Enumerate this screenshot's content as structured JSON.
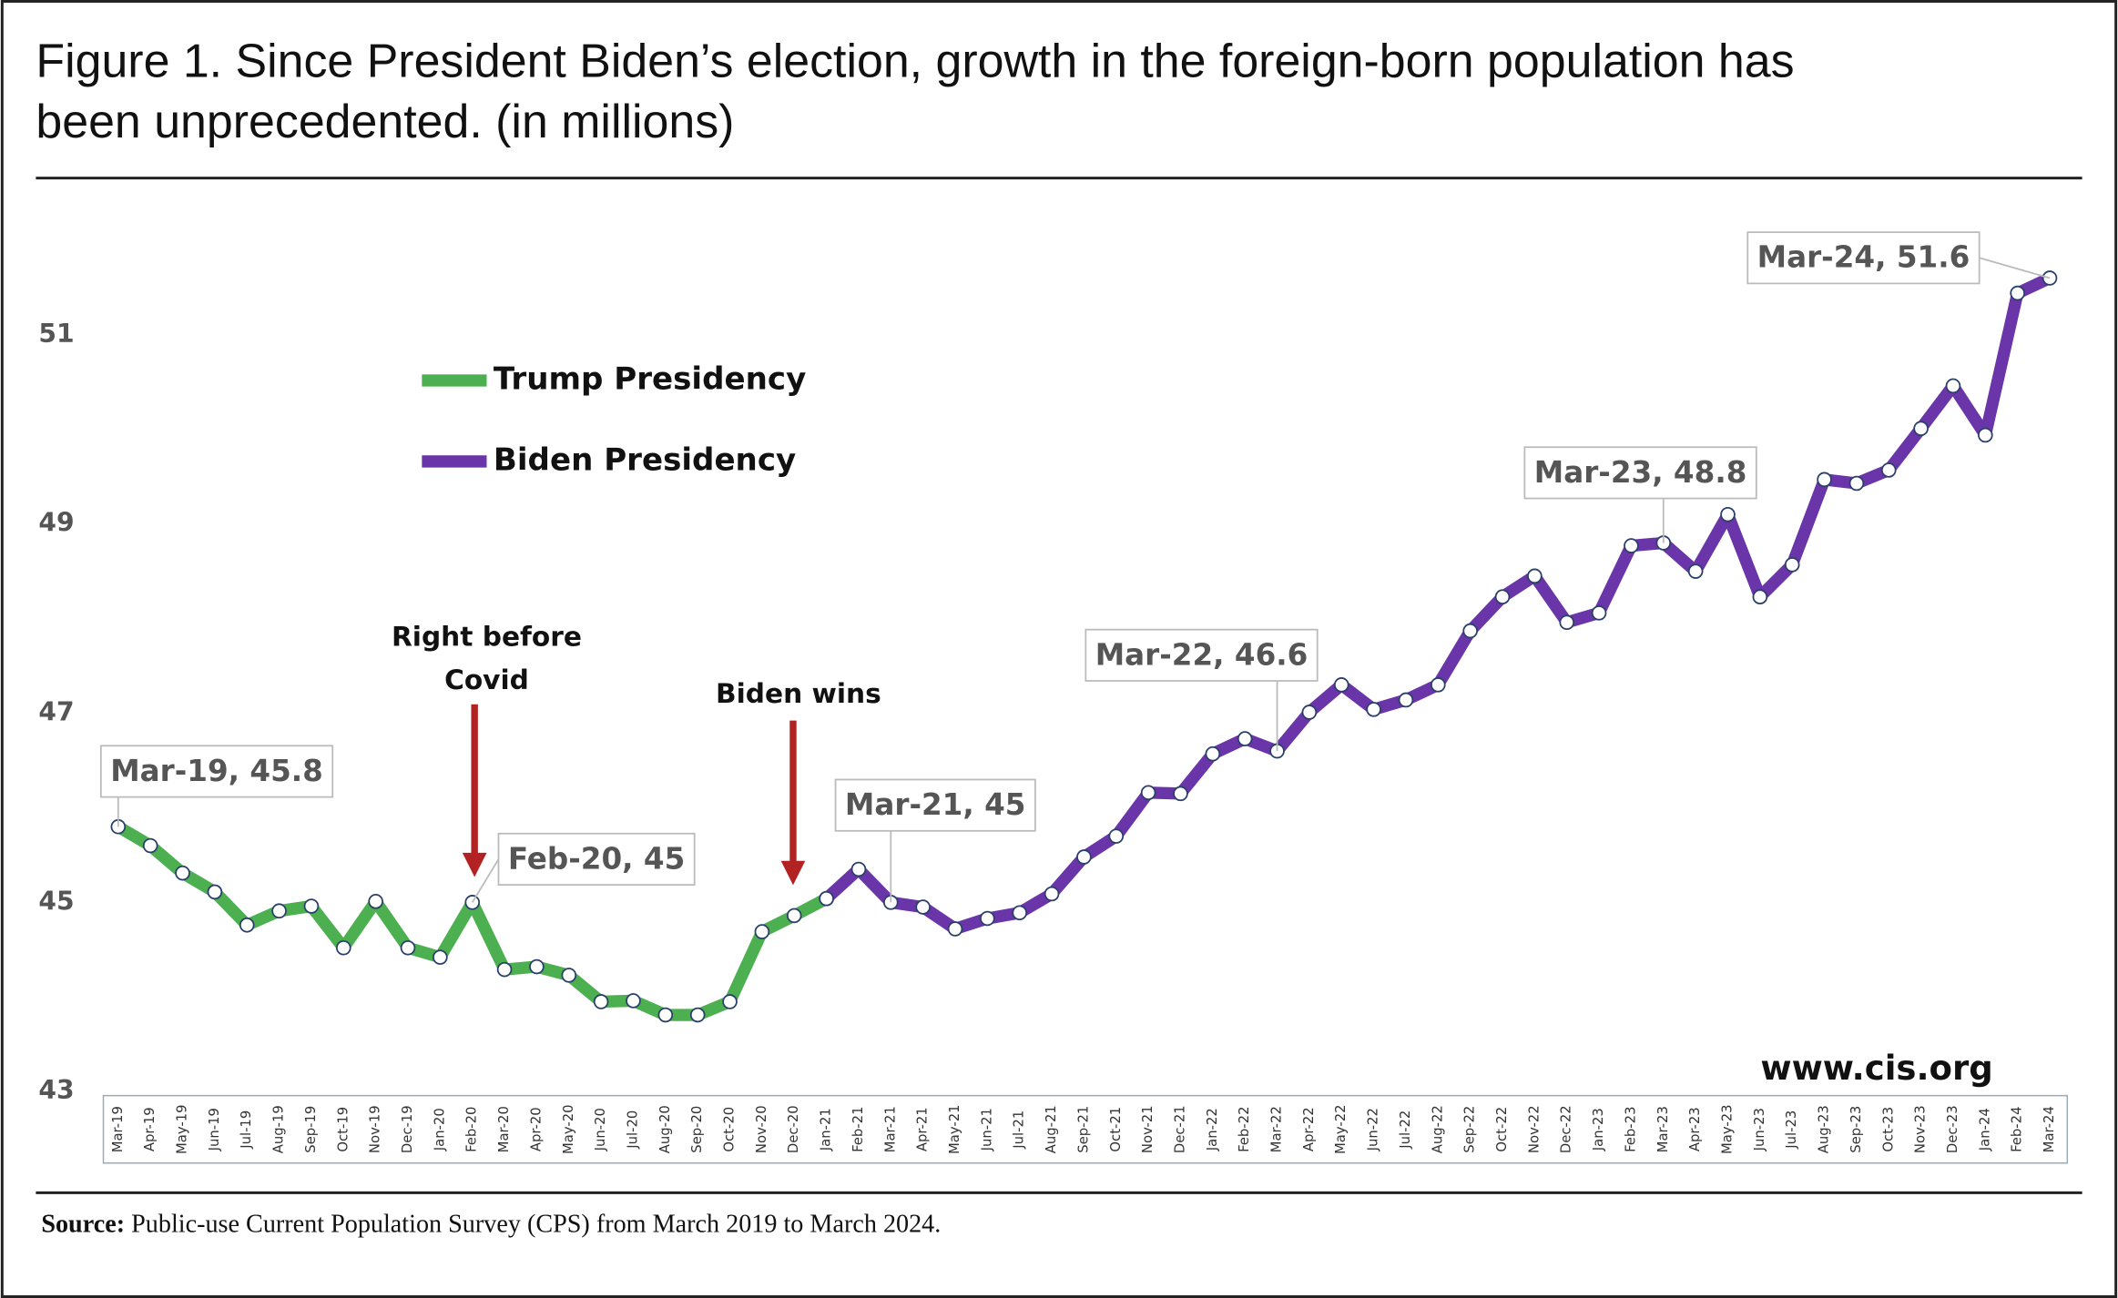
{
  "chart_data": {
    "type": "line",
    "title": [
      "Figure 1. Since President Biden’s election, growth in the foreign-born population has",
      "been unprecedented. (in millions)"
    ],
    "categories": [
      "Mar-19",
      "Apr-19",
      "May-19",
      "Jun-19",
      "Jul-19",
      "Aug-19",
      "Sep-19",
      "Oct-19",
      "Nov-19",
      "Dec-19",
      "Jan-20",
      "Feb-20",
      "Mar-20",
      "Apr-20",
      "May-20",
      "Jun-20",
      "Jul-20",
      "Aug-20",
      "Sep-20",
      "Oct-20",
      "Nov-20",
      "Dec-20",
      "Jan-21",
      "Feb-21",
      "Mar-21",
      "Apr-21",
      "May-21",
      "Jun-21",
      "Jul-21",
      "Aug-21",
      "Sep-21",
      "Oct-21",
      "Nov-21",
      "Dec-21",
      "Jan-22",
      "Feb-22",
      "Mar-22",
      "Apr-22",
      "May-22",
      "Jun-22",
      "Jul-22",
      "Aug-22",
      "Sep-22",
      "Oct-22",
      "Nov-22",
      "Dec-22",
      "Jan-23",
      "Feb-23",
      "Mar-23",
      "Apr-23",
      "May-23",
      "Jun-23",
      "Jul-23",
      "Aug-23",
      "Sep-23",
      "Oct-23",
      "Nov-23",
      "Dec-23",
      "Jan-24",
      "Feb-24",
      "Mar-24"
    ],
    "series": [
      {
        "name": "Trump Presidency",
        "color": "#4caf50",
        "values": [
          45.8,
          45.6,
          45.31,
          45.11,
          44.76,
          44.91,
          44.96,
          44.52,
          45.01,
          44.52,
          44.42,
          45,
          44.29,
          44.32,
          44.23,
          43.95,
          43.96,
          43.81,
          43.81,
          43.95,
          44.69,
          44.86,
          45.04,
          null,
          null,
          null,
          null,
          null,
          null,
          null,
          null,
          null,
          null,
          null,
          null,
          null,
          null,
          null,
          null,
          null,
          null,
          null,
          null,
          null,
          null,
          null,
          null,
          null,
          null,
          null,
          null,
          null,
          null,
          null,
          null,
          null,
          null,
          null,
          null,
          null,
          null
        ],
        "value_labels": [
          "Mar-19,  45.8",
          null,
          null,
          null,
          null,
          null,
          null,
          null,
          null,
          null,
          null,
          "Feb-20,  45",
          null,
          null,
          null,
          null,
          null,
          null,
          null,
          null,
          null,
          null,
          null,
          null,
          null,
          null,
          null,
          null,
          null,
          null,
          null,
          null,
          null,
          null,
          null,
          null,
          null,
          null,
          null,
          null,
          null,
          null,
          null,
          null,
          null,
          null,
          null,
          null,
          null,
          null,
          null,
          null,
          null,
          null,
          null,
          null,
          null,
          null,
          null,
          null,
          null
        ]
      },
      {
        "name": "Biden Presidency",
        "color": "#6a35a8",
        "values": [
          null,
          null,
          null,
          null,
          null,
          null,
          null,
          null,
          null,
          null,
          null,
          null,
          null,
          null,
          null,
          null,
          null,
          null,
          null,
          null,
          null,
          null,
          45.04,
          45.35,
          45,
          44.95,
          44.72,
          44.83,
          44.89,
          45.09,
          45.48,
          45.7,
          46.16,
          46.15,
          46.57,
          46.73,
          46.6,
          47.01,
          47.3,
          47.04,
          47.14,
          47.3,
          47.87,
          48.23,
          48.45,
          47.96,
          48.06,
          48.77,
          48.8,
          48.5,
          49.1,
          48.23,
          48.57,
          49.47,
          49.43,
          49.57,
          50.01,
          50.46,
          49.94,
          51.44,
          51.6
        ],
        "value_labels": [
          null,
          null,
          null,
          null,
          null,
          null,
          null,
          null,
          null,
          null,
          null,
          null,
          null,
          null,
          null,
          null,
          null,
          null,
          null,
          null,
          null,
          null,
          null,
          null,
          "Mar-21,  45",
          null,
          null,
          null,
          null,
          null,
          null,
          null,
          null,
          null,
          null,
          null,
          "Mar-22,  46.6",
          null,
          null,
          null,
          null,
          null,
          null,
          null,
          null,
          null,
          null,
          null,
          "Mar-23,  48.8",
          null,
          null,
          null,
          null,
          null,
          null,
          null,
          null,
          null,
          null,
          null,
          "Mar-24,  51.6"
        ]
      }
    ],
    "ylim": [
      43,
      52.4
    ],
    "yticks": [
      43,
      45,
      47,
      49,
      51
    ],
    "annotations": [
      [
        "Right before",
        "Covid"
      ],
      [
        "Biden wins"
      ]
    ],
    "watermark": "www.cis.org",
    "source": {
      "label": "Source:",
      "text": " Public-use Current Population Survey (CPS) from March 2019 to March 2024."
    }
  }
}
